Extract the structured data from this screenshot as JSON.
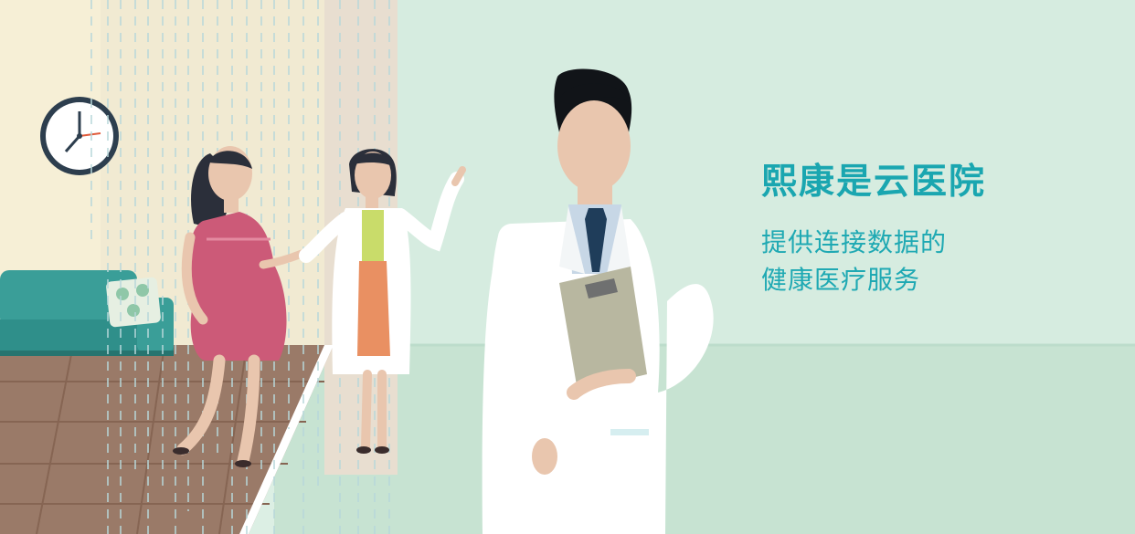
{
  "banner": {
    "title": "熙康是云医院",
    "subtitle_line1": "提供连接数据的",
    "subtitle_line2": "健康医疗服务"
  },
  "scene": {
    "illustration_subjects": [
      "wall-clock-icon",
      "sofa",
      "pregnant-patient",
      "female-doctor",
      "male-doctor",
      "clipboard"
    ],
    "colors": {
      "background": "#dcefe4",
      "left_wall": "#f6efd6",
      "floor_wood": "#9a7a68",
      "sofa": "#3a9e98",
      "doctor_coat": "#ffffff",
      "tie": "#1f3d5a",
      "clipboard": "#b8b7a0",
      "patient_dress": "#cc5a78",
      "accent_text": "#1aa6b0"
    }
  }
}
